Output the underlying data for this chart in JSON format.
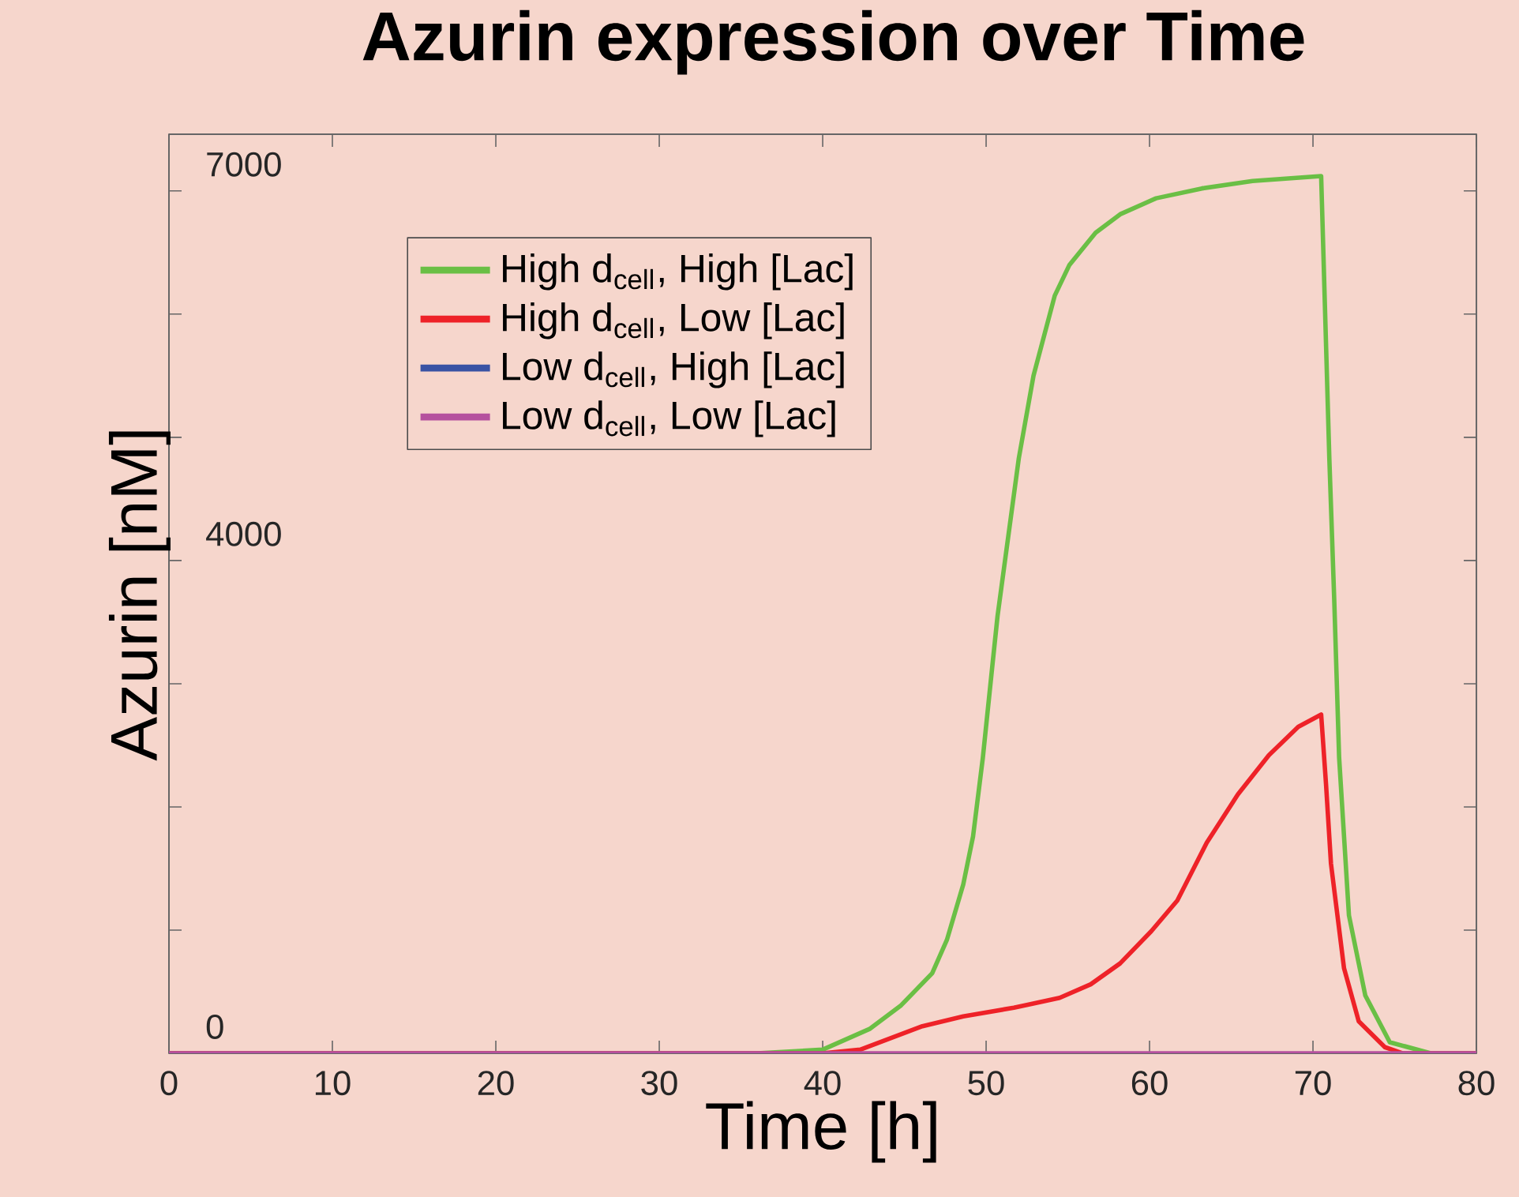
{
  "chart_data": {
    "type": "line",
    "title": "Azurin expression over Time",
    "xlabel": "Time [h]",
    "ylabel": "Azurin [nM]",
    "xlim": [
      0,
      80
    ],
    "ylim": [
      0,
      7460
    ],
    "xticks": [
      0,
      10,
      20,
      30,
      40,
      50,
      60,
      70,
      80
    ],
    "yticks": [
      0,
      {
        "value": 1000,
        "label": null
      },
      {
        "value": 2000,
        "label": null
      },
      {
        "value": 3000,
        "label": null
      },
      4000,
      {
        "value": 5000,
        "label": null
      },
      {
        "value": 6000,
        "label": null
      },
      7000
    ],
    "legend": "top left",
    "grid": false,
    "marker": "none",
    "line_style": "solid",
    "series": [
      {
        "name": "High d$_{cell}$, High [Lac]",
        "color": "#6abf45",
        "x": [
          0,
          36,
          40,
          42.9,
          44.8,
          46.7,
          47.6,
          48.6,
          49.2,
          49.8,
          50.4,
          50.7,
          52.0,
          52.9,
          54.2,
          55.1,
          56.7,
          58.2,
          60.4,
          63.2,
          66.3,
          70.5,
          71.0,
          71.3,
          71.6,
          72.2,
          73.2,
          74.7,
          77.2,
          80
        ],
        "values": [
          0,
          0,
          30,
          200,
          390,
          650,
          920,
          1370,
          1760,
          2400,
          3170,
          3550,
          4830,
          5500,
          6150,
          6400,
          6660,
          6810,
          6940,
          7020,
          7080,
          7120,
          4830,
          3680,
          2400,
          1120,
          470,
          90,
          0,
          0
        ]
      },
      {
        "name": "High d$_{cell}$, Low [Lac]",
        "color": "#ee2228",
        "x": [
          0,
          40,
          42.3,
          46.1,
          48.6,
          51.7,
          54.5,
          56.4,
          58.2,
          60.1,
          61.7,
          63.5,
          65.4,
          67.3,
          69.1,
          70.5,
          70.8,
          71.1,
          71.9,
          72.8,
          74.4,
          75.5,
          80
        ],
        "values": [
          0,
          0,
          30,
          220,
          300,
          370,
          450,
          560,
          730,
          990,
          1240,
          1710,
          2100,
          2420,
          2650,
          2750,
          2180,
          1540,
          690,
          260,
          50,
          0,
          0
        ]
      },
      {
        "name": "Low d$_{cell}$, High [Lac]",
        "color": "#3953a4",
        "values": [
          null
        ]
      },
      {
        "name": "Low d$_{cell}$, Low [Lac]",
        "color": "#b5519e",
        "x": [
          0,
          40,
          70,
          80
        ],
        "values": [
          0,
          0,
          0,
          0
        ]
      }
    ]
  }
}
